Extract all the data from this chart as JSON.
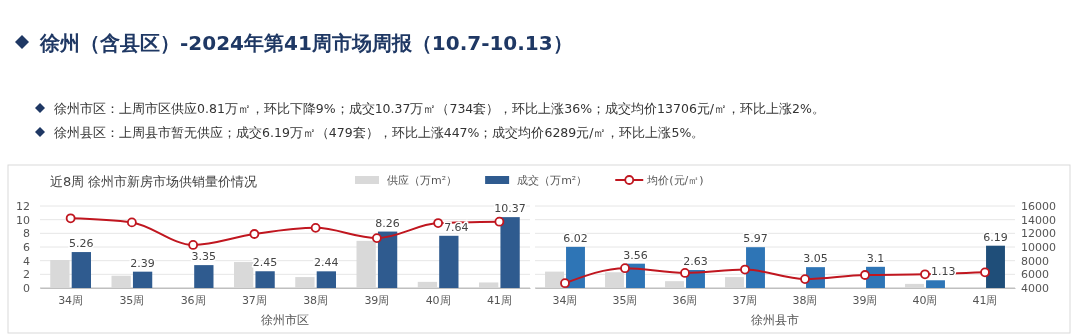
{
  "chart_data": [
    {
      "type": "bar",
      "title": "徐州（含县区）-2024年第41周市场周报（10.7-10.13）",
      "subtitle": "近8周  徐州市新房市场供销量价情况",
      "xlabel": "徐州市区",
      "annotations": [
        "徐州市区：上周市区供应0.81万㎡，环比下降9%；成交10.37万㎡（734套），环比上涨36%；成交均价13706元/㎡，环比上涨2%。",
        "徐州县区：上周县市暂无供应；成交6.19万㎡（479套），环比上涨447%；成交均价6289元/㎡，环比上涨5%。"
      ],
      "categories": [
        "34周",
        "35周",
        "36周",
        "37周",
        "38周",
        "39周",
        "40周",
        "41周"
      ],
      "series": [
        {
          "name": "供应（万m²）",
          "color": "#d9d9d9",
          "values": [
            4.1,
            1.8,
            0,
            3.8,
            1.6,
            6.9,
            0.9,
            0.81
          ]
        },
        {
          "name": "成交（万m²）",
          "color": "#2f5b8f",
          "values": [
            5.26,
            2.39,
            3.35,
            2.45,
            2.44,
            8.26,
            7.64,
            10.37
          ],
          "value_labels": [
            "5.26",
            "2.39",
            "3.35",
            "2.45",
            "2.44",
            "8.26",
            "7.64",
            "10.37"
          ]
        },
        {
          "name": "均价(元/㎡)",
          "type": "line",
          "axis": "y2",
          "color": "#c0161f",
          "values": [
            14200,
            13600,
            10300,
            11900,
            12800,
            11300,
            13500,
            13706
          ]
        }
      ],
      "ylim": [
        0,
        12
      ],
      "yticks": [
        0,
        2,
        4,
        6,
        8,
        10,
        12
      ],
      "y2lim": [
        4000,
        16000
      ],
      "tick_labels": [
        "x",
        "y"
      ],
      "grid": "y",
      "legend": "top",
      "marker": "circle"
    },
    {
      "type": "bar",
      "xlabel": "徐州县市",
      "categories": [
        "34周",
        "35周",
        "36周",
        "37周",
        "38周",
        "39周",
        "40周",
        "41周"
      ],
      "series": [
        {
          "color": "#d9d9d9",
          "values": [
            2.4,
            2.3,
            1.0,
            1.6,
            0,
            0,
            0.6,
            0
          ]
        },
        {
          "color": "#2e75b6",
          "colors": [
            null,
            null,
            null,
            null,
            null,
            null,
            null,
            "#1f4e79"
          ],
          "values": [
            6.02,
            3.56,
            2.63,
            5.97,
            3.05,
            3.1,
            1.13,
            6.19
          ],
          "value_labels": [
            "6.02",
            "3.56",
            "2.63",
            "5.97",
            "3.05",
            "3.1",
            "1.13",
            "6.19"
          ]
        },
        {
          "type": "line",
          "axis": "y2",
          "color": "#c0161f",
          "values": [
            4700,
            6900,
            6200,
            6700,
            5300,
            5900,
            6000,
            6289
          ]
        }
      ],
      "ylim": [
        0,
        12
      ],
      "y2lim": [
        4000,
        16000
      ],
      "y2ticks": [
        4000,
        6000,
        8000,
        10000,
        12000,
        14000,
        16000
      ],
      "tick_labels": [
        "x",
        "y2"
      ],
      "grid": "y",
      "marker": "circle"
    }
  ]
}
